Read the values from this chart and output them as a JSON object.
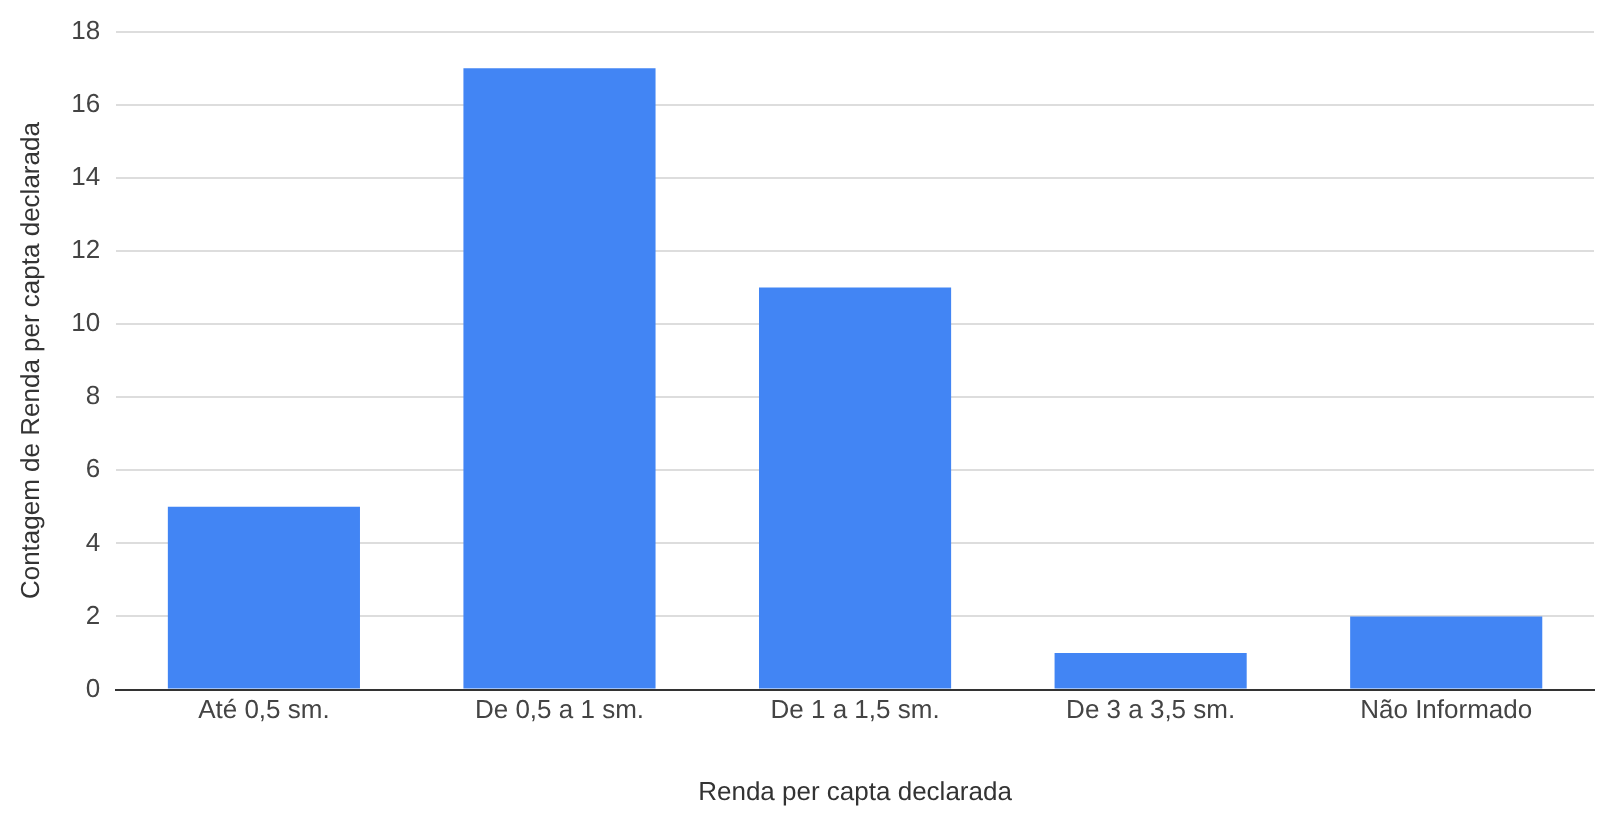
{
  "chart_data": {
    "type": "bar",
    "xlabel": "Renda per capta declarada",
    "ylabel": "Contagem de Renda per capta declarada",
    "categories": [
      "Até 0,5 sm.",
      "De 0,5 a 1 sm.",
      "De 1 a 1,5 sm.",
      "De 3 a 3,5 sm.",
      "Não Informado"
    ],
    "values": [
      5,
      17,
      11,
      1,
      2
    ],
    "color": "#4285f4",
    "ylim": [
      0,
      18
    ],
    "yticks": [
      0,
      2,
      4,
      6,
      8,
      10,
      12,
      14,
      16,
      18
    ],
    "grid": "y",
    "legend": false
  }
}
